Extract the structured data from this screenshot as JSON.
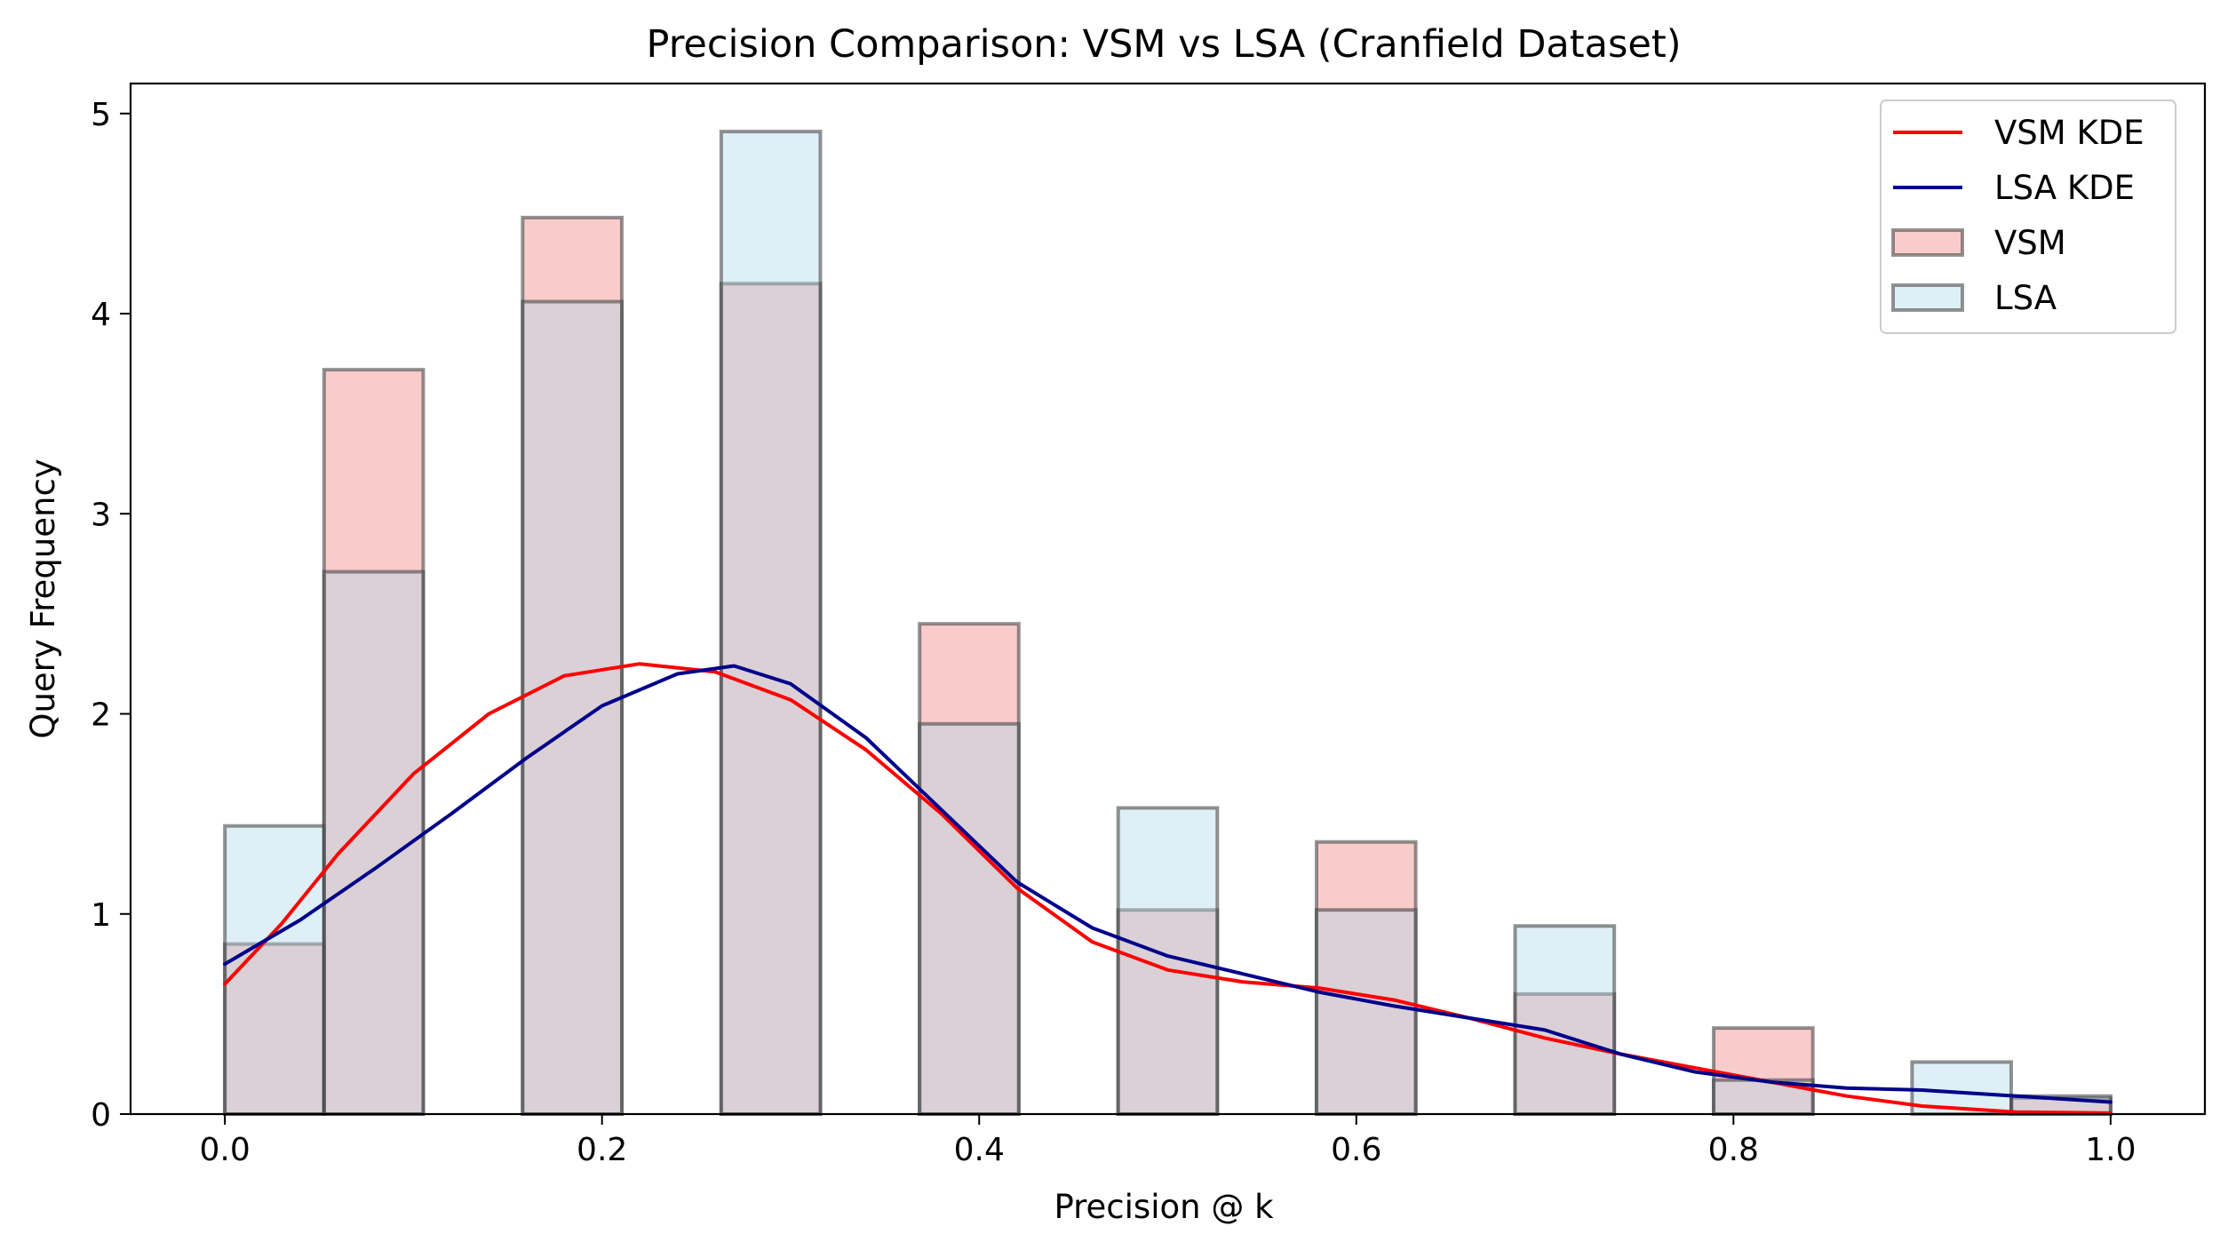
{
  "chart_data": {
    "type": "histogram",
    "title": "Precision Comparison: VSM vs LSA (Cranfield Dataset)",
    "xlabel": "Precision @ k",
    "ylabel": "Query Frequency",
    "xlim": [
      -0.05,
      1.05
    ],
    "ylim": [
      0,
      5.15
    ],
    "xticks": [
      "0.0",
      "0.2",
      "0.4",
      "0.6",
      "0.8",
      "1.0"
    ],
    "yticks": [
      "0",
      "1",
      "2",
      "3",
      "4",
      "5"
    ],
    "grid": false,
    "legend_position": "top-right",
    "legend": [
      {
        "label": "VSM KDE",
        "kind": "line",
        "color": "#ff0000"
      },
      {
        "label": "LSA KDE",
        "kind": "line",
        "color": "#00008b"
      },
      {
        "label": "VSM",
        "kind": "patch",
        "color": "#f08080"
      },
      {
        "label": "LSA",
        "kind": "patch",
        "color": "#add8e6"
      }
    ],
    "bin_width": 0.0526,
    "bin_starts": [
      0.0,
      0.0526,
      0.1053,
      0.1579,
      0.2105,
      0.2632,
      0.3158,
      0.3684,
      0.4211,
      0.4737,
      0.5263,
      0.5789,
      0.6316,
      0.6842,
      0.7368,
      0.7895,
      0.8421,
      0.8947,
      0.9474
    ],
    "series": [
      {
        "name": "VSM",
        "color": "#f08080",
        "values": [
          0.85,
          3.72,
          0,
          4.48,
          0,
          4.15,
          0,
          2.45,
          0,
          1.02,
          0,
          1.36,
          0,
          0.6,
          0,
          0.43,
          0,
          0,
          0.08
        ]
      },
      {
        "name": "LSA",
        "color": "#add8e6",
        "values": [
          1.44,
          2.71,
          0,
          4.06,
          0,
          4.91,
          0,
          1.95,
          0,
          1.53,
          0,
          1.02,
          0,
          0.94,
          0,
          0.17,
          0,
          0.26,
          0.09
        ]
      }
    ],
    "kde": [
      {
        "name": "VSM KDE",
        "color": "#ff0000",
        "points": [
          [
            0.0,
            0.65
          ],
          [
            0.03,
            0.95
          ],
          [
            0.06,
            1.3
          ],
          [
            0.1,
            1.7
          ],
          [
            0.14,
            2.0
          ],
          [
            0.18,
            2.19
          ],
          [
            0.22,
            2.25
          ],
          [
            0.26,
            2.21
          ],
          [
            0.3,
            2.07
          ],
          [
            0.34,
            1.82
          ],
          [
            0.38,
            1.5
          ],
          [
            0.42,
            1.13
          ],
          [
            0.46,
            0.86
          ],
          [
            0.5,
            0.72
          ],
          [
            0.54,
            0.66
          ],
          [
            0.58,
            0.63
          ],
          [
            0.62,
            0.57
          ],
          [
            0.66,
            0.48
          ],
          [
            0.7,
            0.38
          ],
          [
            0.74,
            0.3
          ],
          [
            0.78,
            0.23
          ],
          [
            0.82,
            0.16
          ],
          [
            0.86,
            0.09
          ],
          [
            0.9,
            0.04
          ],
          [
            0.95,
            0.01
          ],
          [
            1.0,
            0.005
          ]
        ]
      },
      {
        "name": "LSA KDE",
        "color": "#00008b",
        "points": [
          [
            0.0,
            0.75
          ],
          [
            0.04,
            0.97
          ],
          [
            0.08,
            1.23
          ],
          [
            0.12,
            1.5
          ],
          [
            0.16,
            1.78
          ],
          [
            0.2,
            2.04
          ],
          [
            0.24,
            2.2
          ],
          [
            0.27,
            2.24
          ],
          [
            0.3,
            2.15
          ],
          [
            0.34,
            1.88
          ],
          [
            0.38,
            1.52
          ],
          [
            0.42,
            1.16
          ],
          [
            0.46,
            0.93
          ],
          [
            0.5,
            0.79
          ],
          [
            0.54,
            0.7
          ],
          [
            0.58,
            0.61
          ],
          [
            0.62,
            0.54
          ],
          [
            0.66,
            0.48
          ],
          [
            0.7,
            0.42
          ],
          [
            0.74,
            0.3
          ],
          [
            0.78,
            0.21
          ],
          [
            0.82,
            0.16
          ],
          [
            0.86,
            0.13
          ],
          [
            0.9,
            0.12
          ],
          [
            0.95,
            0.09
          ],
          [
            1.0,
            0.06
          ]
        ]
      }
    ]
  }
}
